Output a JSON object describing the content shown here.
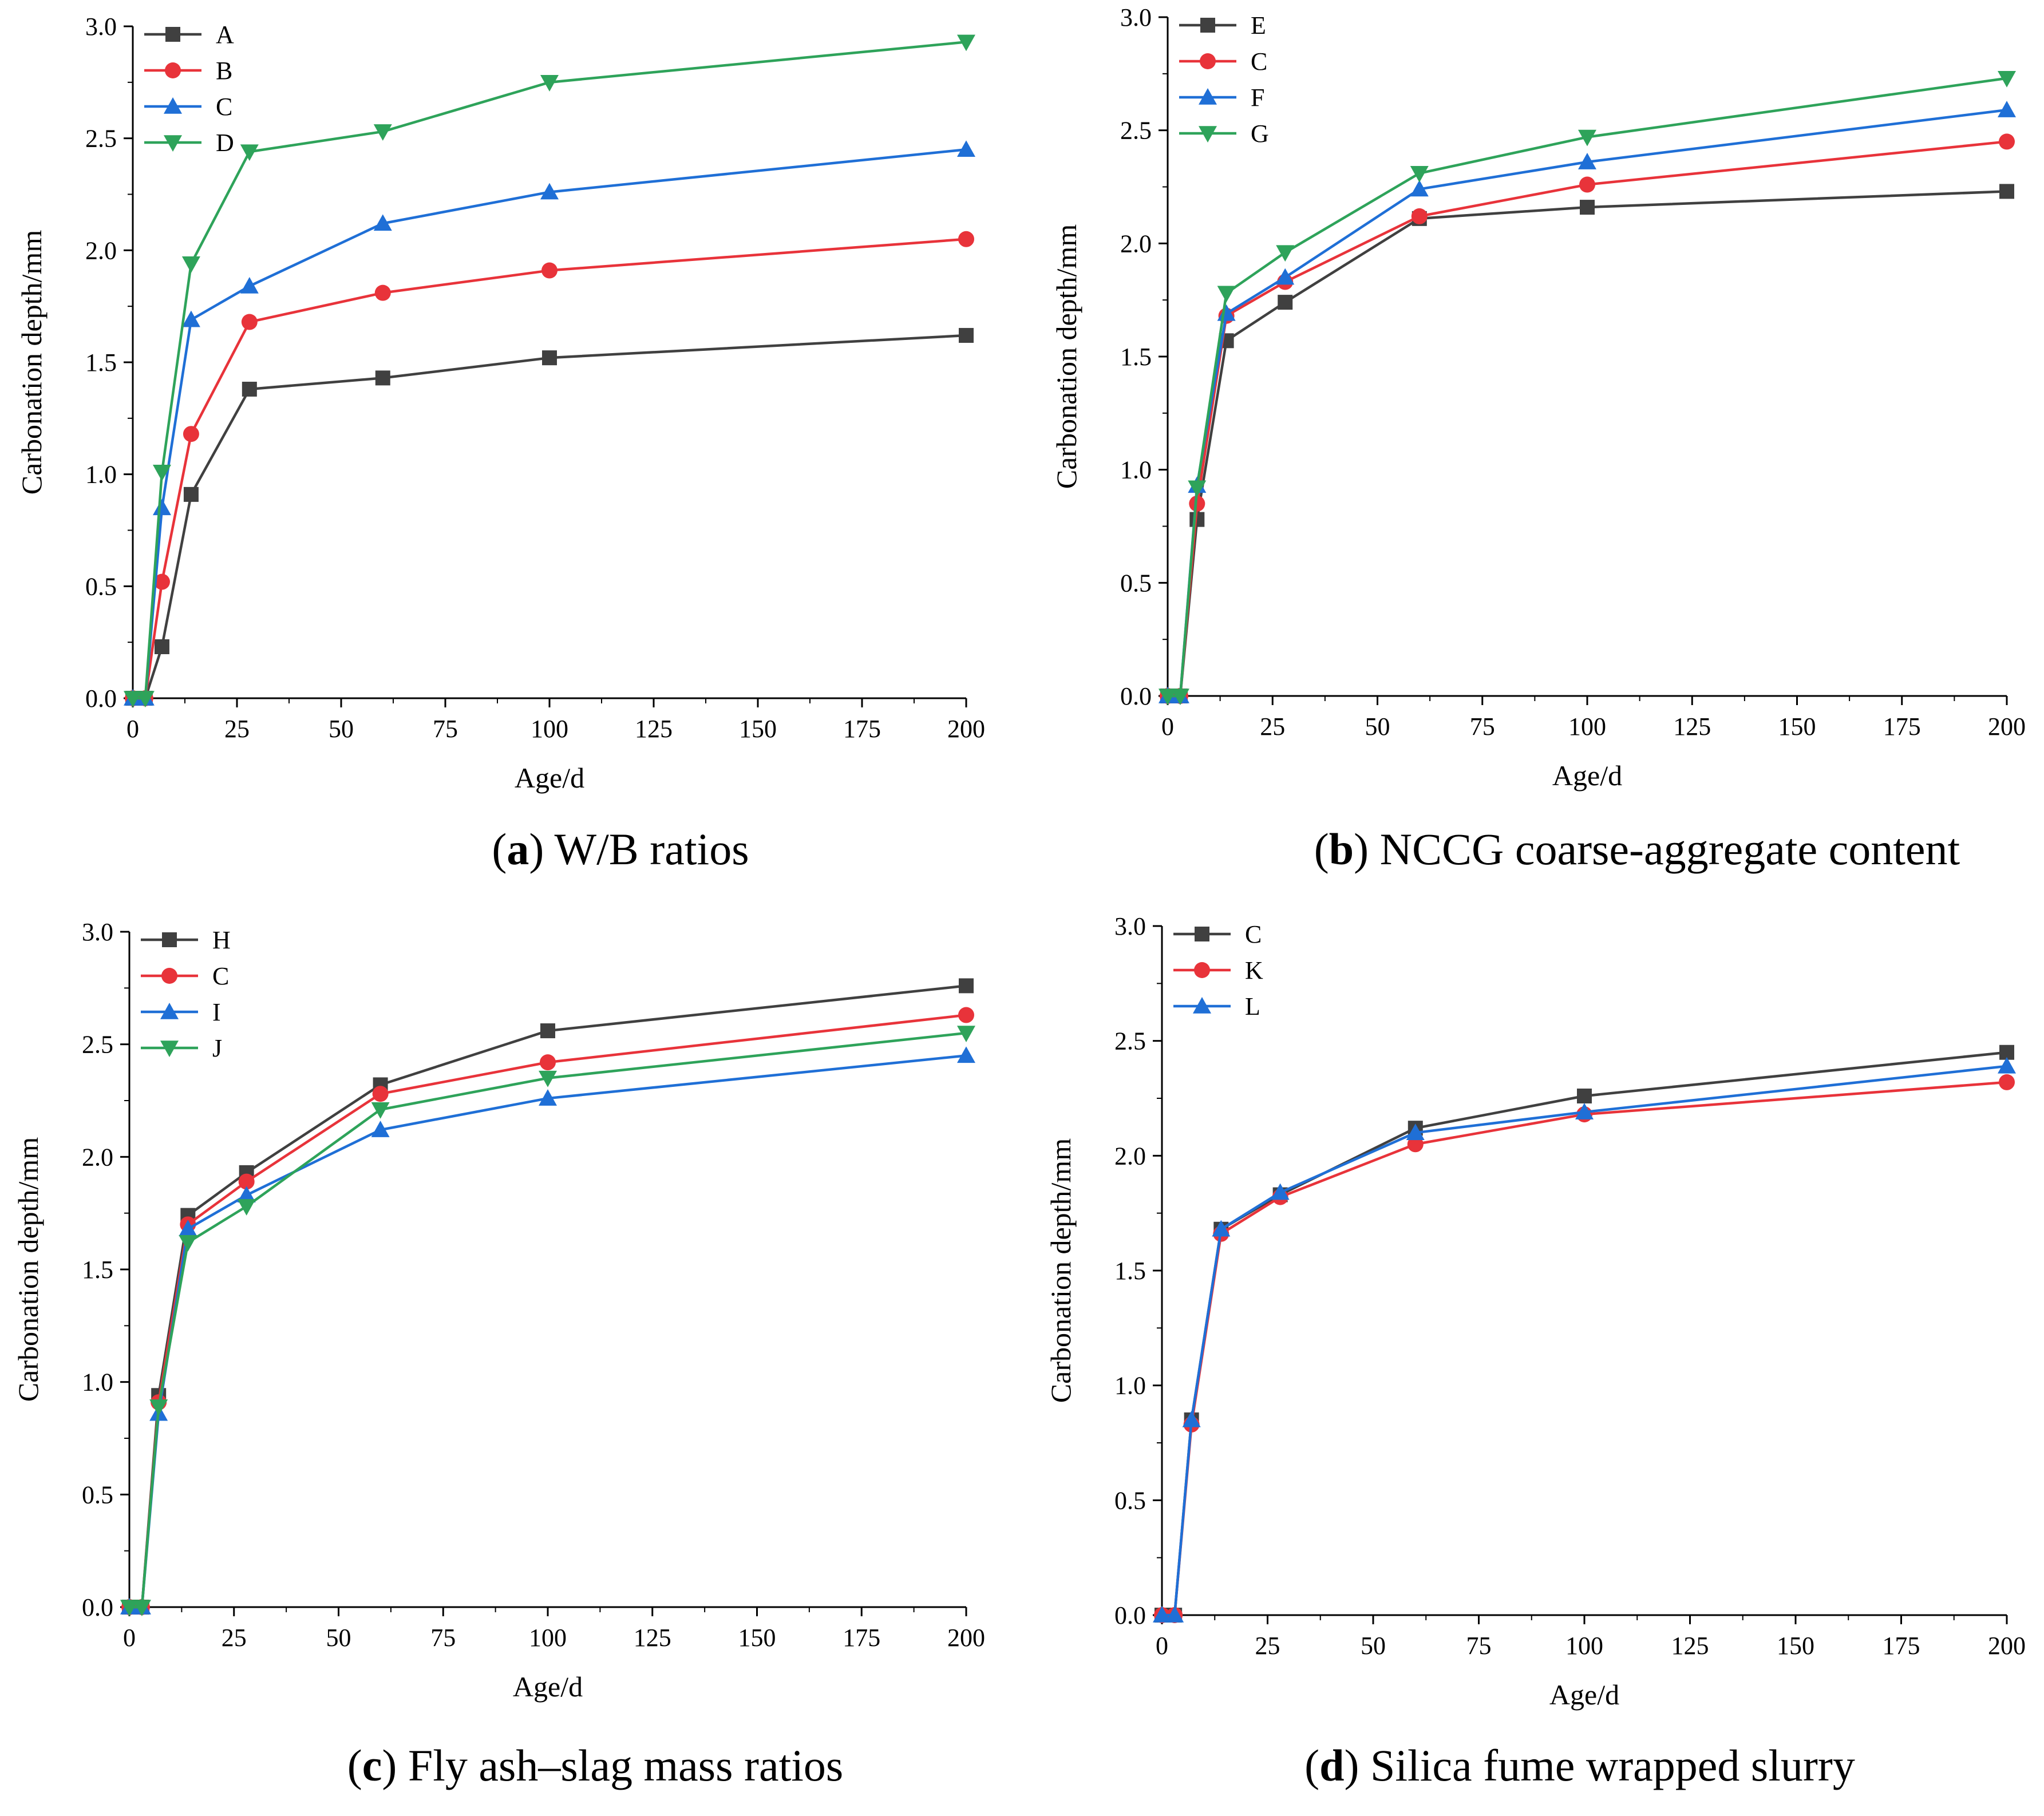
{
  "chart_data": [
    {
      "type": "line",
      "panel": "a",
      "caption_letter": "a",
      "caption_text": " W/B ratios",
      "xlabel": "Age/d",
      "ylabel": "Carbonation depth/mm",
      "xlim": [
        0,
        200
      ],
      "ylim": [
        0,
        3.0
      ],
      "xticks": [
        "0",
        "25",
        "50",
        "75",
        "100",
        "125",
        "150",
        "175",
        "200"
      ],
      "yticks": [
        "0.0",
        "0.5",
        "1.0",
        "1.5",
        "2.0",
        "2.5",
        "3.0"
      ],
      "legend_position": "top-left",
      "series": [
        {
          "name": "A",
          "color": "#404040",
          "marker": "square",
          "x": [
            0,
            3,
            7,
            14,
            28,
            60,
            100,
            200
          ],
          "y": [
            0,
            0,
            0.23,
            0.91,
            1.38,
            1.43,
            1.52,
            1.62
          ]
        },
        {
          "name": "B",
          "color": "#e8333a",
          "marker": "circle",
          "x": [
            0,
            3,
            7,
            14,
            28,
            60,
            100,
            200
          ],
          "y": [
            0,
            0,
            0.52,
            1.18,
            1.68,
            1.81,
            1.91,
            2.05
          ]
        },
        {
          "name": "C",
          "color": "#1f6fd6",
          "marker": "triangle-up",
          "x": [
            0,
            3,
            7,
            14,
            28,
            60,
            100,
            200
          ],
          "y": [
            0,
            0,
            0.85,
            1.69,
            1.84,
            2.12,
            2.26,
            2.45
          ]
        },
        {
          "name": "D",
          "color": "#2ea35a",
          "marker": "triangle-down",
          "x": [
            0,
            3,
            7,
            14,
            28,
            60,
            100,
            200
          ],
          "y": [
            0,
            0,
            1.01,
            1.94,
            2.44,
            2.53,
            2.75,
            2.93
          ]
        }
      ]
    },
    {
      "type": "line",
      "panel": "b",
      "caption_letter": "b",
      "caption_text": " NCCG coarse-aggregate content",
      "xlabel": "Age/d",
      "ylabel": "Carbonation depth/mm",
      "xlim": [
        0,
        200
      ],
      "ylim": [
        0,
        3.0
      ],
      "xticks": [
        "0",
        "25",
        "50",
        "75",
        "100",
        "125",
        "150",
        "175",
        "200"
      ],
      "yticks": [
        "0.0",
        "0.5",
        "1.0",
        "1.5",
        "2.0",
        "2.5",
        "3.0"
      ],
      "legend_position": "top-left",
      "series": [
        {
          "name": "E",
          "color": "#404040",
          "marker": "square",
          "x": [
            0,
            3,
            7,
            14,
            28,
            60,
            100,
            200
          ],
          "y": [
            0,
            0,
            0.78,
            1.57,
            1.74,
            2.11,
            2.16,
            2.23
          ]
        },
        {
          "name": "C",
          "color": "#e8333a",
          "marker": "circle",
          "x": [
            0,
            3,
            7,
            14,
            28,
            60,
            100,
            200
          ],
          "y": [
            0,
            0,
            0.85,
            1.68,
            1.83,
            2.12,
            2.26,
            2.45
          ]
        },
        {
          "name": "F",
          "color": "#1f6fd6",
          "marker": "triangle-up",
          "x": [
            0,
            3,
            7,
            14,
            28,
            60,
            100,
            200
          ],
          "y": [
            0,
            0,
            0.93,
            1.69,
            1.85,
            2.24,
            2.36,
            2.59
          ]
        },
        {
          "name": "G",
          "color": "#2ea35a",
          "marker": "triangle-down",
          "x": [
            0,
            3,
            7,
            14,
            28,
            60,
            100,
            200
          ],
          "y": [
            0,
            0,
            0.92,
            1.78,
            1.96,
            2.31,
            2.47,
            2.73
          ]
        }
      ]
    },
    {
      "type": "line",
      "panel": "c",
      "caption_letter": "c",
      "caption_text": " Fly ash–slag mass ratios",
      "xlabel": "Age/d",
      "ylabel": "Carbonation depth/mm",
      "xlim": [
        0,
        200
      ],
      "ylim": [
        0,
        3.0
      ],
      "xticks": [
        "0",
        "25",
        "50",
        "75",
        "100",
        "125",
        "150",
        "175",
        "200"
      ],
      "yticks": [
        "0.0",
        "0.5",
        "1.0",
        "1.5",
        "2.0",
        "2.5",
        "3.0"
      ],
      "legend_position": "top-left",
      "series": [
        {
          "name": "H",
          "color": "#404040",
          "marker": "square",
          "x": [
            0,
            3,
            7,
            14,
            28,
            60,
            100,
            200
          ],
          "y": [
            0,
            0,
            0.94,
            1.74,
            1.93,
            2.32,
            2.56,
            2.76
          ]
        },
        {
          "name": "C",
          "color": "#e8333a",
          "marker": "circle",
          "x": [
            0,
            3,
            7,
            14,
            28,
            60,
            100,
            200
          ],
          "y": [
            0,
            0,
            0.91,
            1.7,
            1.89,
            2.28,
            2.42,
            2.63
          ]
        },
        {
          "name": "I",
          "color": "#1f6fd6",
          "marker": "triangle-up",
          "x": [
            0,
            3,
            7,
            14,
            28,
            60,
            100,
            200
          ],
          "y": [
            0,
            0,
            0.86,
            1.68,
            1.83,
            2.12,
            2.26,
            2.45
          ]
        },
        {
          "name": "J",
          "color": "#2ea35a",
          "marker": "triangle-down",
          "x": [
            0,
            3,
            7,
            14,
            28,
            60,
            100,
            200
          ],
          "y": [
            0,
            0,
            0.89,
            1.62,
            1.78,
            2.21,
            2.35,
            2.55
          ]
        }
      ]
    },
    {
      "type": "line",
      "panel": "d",
      "caption_letter": "d",
      "caption_text": " Silica fume wrapped slurry",
      "xlabel": "Age/d",
      "ylabel": "Carbonation depth/mm",
      "xlim": [
        0,
        200
      ],
      "ylim": [
        0,
        3.0
      ],
      "xticks": [
        "0",
        "25",
        "50",
        "75",
        "100",
        "125",
        "150",
        "175",
        "200"
      ],
      "yticks": [
        "0.0",
        "0.5",
        "1.0",
        "1.5",
        "2.0",
        "2.5",
        "3.0"
      ],
      "legend_position": "top-left",
      "series": [
        {
          "name": "C",
          "color": "#404040",
          "marker": "square",
          "x": [
            0,
            3,
            7,
            14,
            28,
            60,
            100,
            200
          ],
          "y": [
            0,
            0,
            0.85,
            1.68,
            1.83,
            2.12,
            2.26,
            2.45
          ]
        },
        {
          "name": "K",
          "color": "#e8333a",
          "marker": "circle",
          "x": [
            0,
            3,
            7,
            14,
            28,
            60,
            100,
            200
          ],
          "y": [
            0,
            0,
            0.83,
            1.66,
            1.82,
            2.05,
            2.18,
            2.32
          ]
        },
        {
          "name": "L",
          "color": "#1f6fd6",
          "marker": "triangle-up",
          "x": [
            0,
            3,
            7,
            14,
            28,
            60,
            100,
            200
          ],
          "y": [
            0,
            0,
            0.85,
            1.68,
            1.84,
            2.1,
            2.19,
            2.39
          ]
        }
      ]
    }
  ]
}
